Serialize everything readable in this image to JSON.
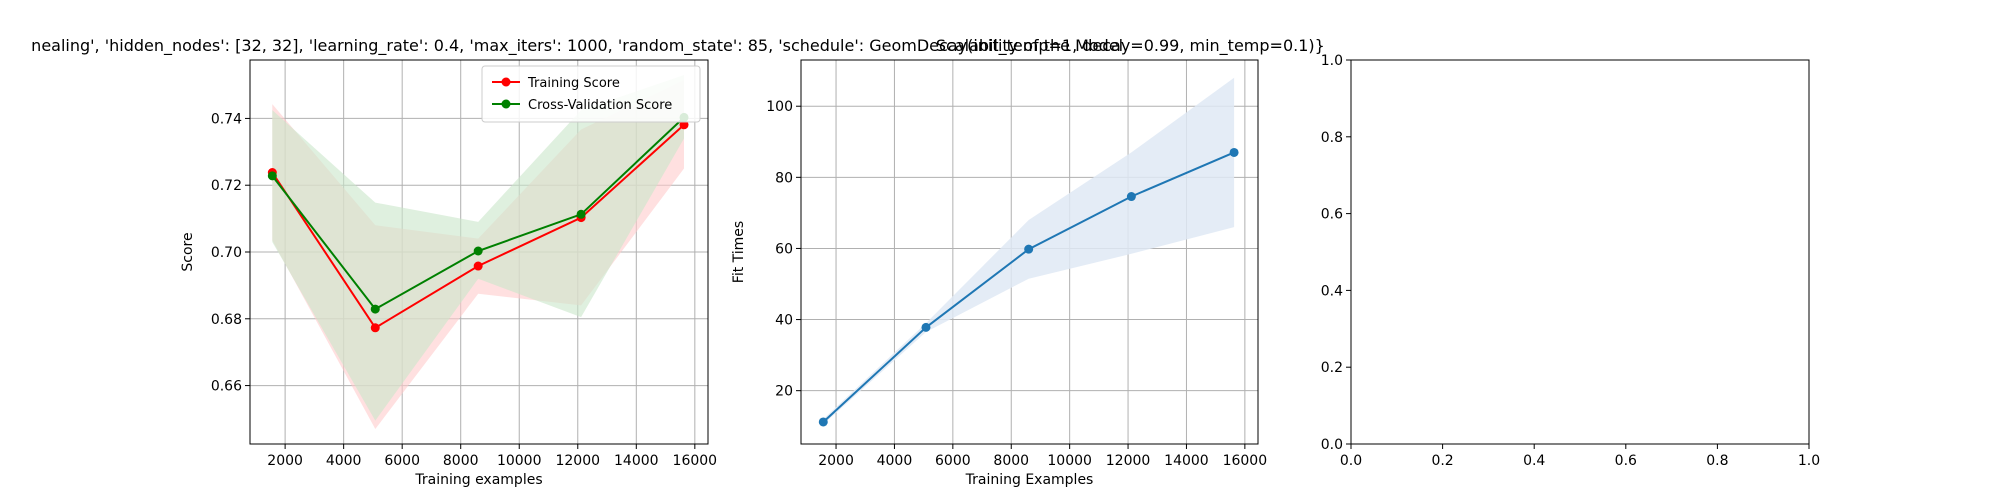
{
  "figure": {
    "title": "nealing', 'hidden_nodes': [32, 32], 'learning_rate': 0.4, 'max_iters': 1000, 'random_state': 85, 'schedule': GeomDecay(init_temp=1, decay=0.99, min_temp=0.1)}",
    "overlap_title": "Scalability of the Model"
  },
  "colors": {
    "train": "#ff0000",
    "cv": "#008000",
    "fit": "#1f77b4",
    "train_fill": "#ffcccc",
    "cv_fill": "#c9e6c9",
    "fit_fill": "#dfe9f5",
    "grid": "#b0b0b0"
  },
  "chart_data": [
    {
      "type": "line",
      "title": "",
      "xlabel": "Training examples",
      "ylabel": "Score",
      "xlim": [
        800,
        16450
      ],
      "ylim": [
        0.6425,
        0.7575
      ],
      "xticks": [
        2000,
        4000,
        6000,
        8000,
        10000,
        12000,
        14000,
        16000
      ],
      "yticks": [
        0.66,
        0.68,
        0.7,
        0.72,
        0.74
      ],
      "yticklabels": [
        "0.66",
        "0.68",
        "0.70",
        "0.72",
        "0.74"
      ],
      "grid": true,
      "legend": "top-right",
      "x": [
        1563,
        5080,
        8597,
        12114,
        15631
      ],
      "series": [
        {
          "name": "Training Score",
          "values": [
            0.7238,
            0.6773,
            0.6958,
            0.7103,
            0.7381
          ],
          "band_low": [
            0.7035,
            0.647,
            0.6875,
            0.684,
            0.725
          ],
          "band_high": [
            0.7443,
            0.708,
            0.704,
            0.7367,
            0.7515
          ]
        },
        {
          "name": "Cross-Validation Score",
          "values": [
            0.7228,
            0.6829,
            0.7003,
            0.7113,
            0.7403
          ],
          "band_low": [
            0.703,
            0.6495,
            0.692,
            0.6805,
            0.734
          ],
          "band_high": [
            0.7425,
            0.7148,
            0.709,
            0.7425,
            0.753
          ]
        }
      ]
    },
    {
      "type": "line",
      "title": "Scalability of the Model",
      "xlabel": "Training Examples",
      "ylabel": "Fit Times",
      "xlim": [
        800,
        16450
      ],
      "ylim": [
        5,
        113
      ],
      "xticks": [
        2000,
        4000,
        6000,
        8000,
        10000,
        12000,
        14000,
        16000
      ],
      "yticks": [
        20,
        40,
        60,
        80,
        100
      ],
      "yticklabels": [
        "20",
        "40",
        "60",
        "80",
        "100"
      ],
      "grid": true,
      "x": [
        1563,
        5080,
        8597,
        12114,
        15631
      ],
      "series": [
        {
          "values": [
            11.2,
            37.8,
            59.8,
            74.6,
            87.0
          ],
          "band_low": [
            10.5,
            36.5,
            51.5,
            58.5,
            66.0
          ],
          "band_high": [
            12.0,
            39.0,
            68.0,
            87.0,
            108.0
          ]
        }
      ]
    },
    {
      "type": "line",
      "title": "",
      "xlabel": "",
      "ylabel": "",
      "xlim": [
        0,
        1
      ],
      "ylim": [
        0,
        1
      ],
      "xticks": [
        0,
        0.2,
        0.4,
        0.6,
        0.8,
        1.0
      ],
      "xticklabels": [
        "0.0",
        "0.2",
        "0.4",
        "0.6",
        "0.8",
        "1.0"
      ],
      "yticks": [
        0,
        0.2,
        0.4,
        0.6,
        0.8,
        1.0
      ],
      "yticklabels": [
        "0.0",
        "0.2",
        "0.4",
        "0.6",
        "0.8",
        "1.0"
      ],
      "grid": false,
      "series": []
    }
  ]
}
